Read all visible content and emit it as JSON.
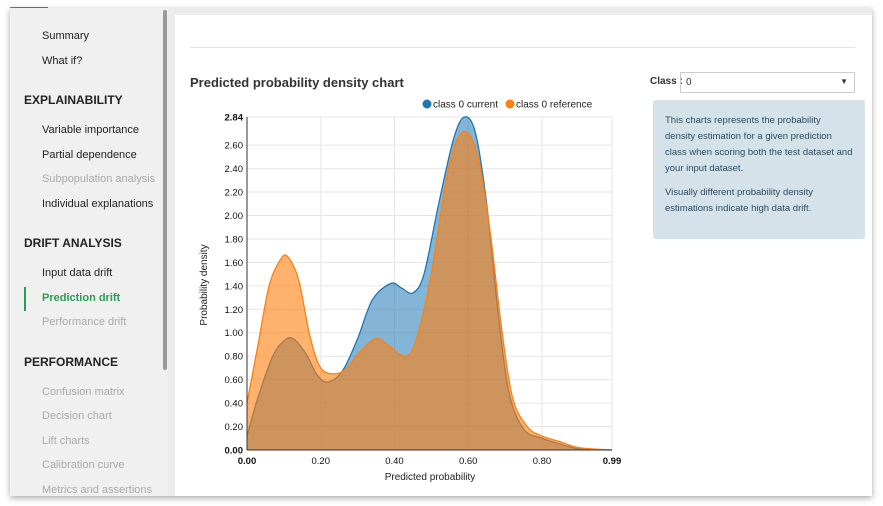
{
  "sidebar": {
    "items_top": [
      "Summary",
      "What if?"
    ],
    "sections": [
      {
        "heading": "EXPLAINABILITY",
        "items": [
          {
            "label": "Variable importance",
            "state": "enabled"
          },
          {
            "label": "Partial dependence",
            "state": "enabled"
          },
          {
            "label": "Subpopulation analysis",
            "state": "disabled"
          },
          {
            "label": "Individual explanations",
            "state": "enabled"
          }
        ]
      },
      {
        "heading": "DRIFT ANALYSIS",
        "items": [
          {
            "label": "Input data drift",
            "state": "enabled"
          },
          {
            "label": "Prediction drift",
            "state": "active"
          },
          {
            "label": "Performance drift",
            "state": "disabled"
          }
        ]
      },
      {
        "heading": "PERFORMANCE",
        "items": [
          {
            "label": "Confusion matrix",
            "state": "disabled"
          },
          {
            "label": "Decision chart",
            "state": "disabled"
          },
          {
            "label": "Lift charts",
            "state": "disabled"
          },
          {
            "label": "Calibration curve",
            "state": "disabled"
          },
          {
            "label": "Metrics and assertions",
            "state": "disabled"
          }
        ]
      }
    ]
  },
  "main": {
    "title": "Predicted probability density chart",
    "class_label": "Class :",
    "class_value": "0",
    "info": [
      "This charts represents the probability density estimation for a given prediction class when scoring both the test dataset and your input dataset.",
      "Visually different probability density estimations indicate high data drift."
    ]
  },
  "colors": {
    "accent": "#2a9d55",
    "current": "#1f77b4",
    "reference": "#ff7f0e"
  },
  "chart_data": {
    "type": "area",
    "xlabel": "Predicted probability",
    "ylabel": "Probability density",
    "xlim": [
      0,
      0.99
    ],
    "ylim": [
      0,
      2.84
    ],
    "x_ticks": [
      "0.00",
      "0.20",
      "0.40",
      "0.60",
      "0.80",
      "0.99"
    ],
    "y_ticks": [
      "0.00",
      "0.20",
      "0.40",
      "0.60",
      "0.80",
      "1.00",
      "1.20",
      "1.40",
      "1.60",
      "1.80",
      "2.00",
      "2.20",
      "2.40",
      "2.60",
      "2.84"
    ],
    "grid": true,
    "legend": "top-right",
    "series": [
      {
        "name": "class 0 current",
        "points": [
          [
            0,
            0.12
          ],
          [
            0.03,
            0.45
          ],
          [
            0.07,
            0.8
          ],
          [
            0.1,
            0.93
          ],
          [
            0.125,
            0.95
          ],
          [
            0.16,
            0.82
          ],
          [
            0.19,
            0.64
          ],
          [
            0.22,
            0.58
          ],
          [
            0.26,
            0.68
          ],
          [
            0.3,
            0.95
          ],
          [
            0.34,
            1.28
          ],
          [
            0.39,
            1.42
          ],
          [
            0.42,
            1.38
          ],
          [
            0.45,
            1.34
          ],
          [
            0.48,
            1.5
          ],
          [
            0.52,
            2.1
          ],
          [
            0.56,
            2.65
          ],
          [
            0.59,
            2.84
          ],
          [
            0.62,
            2.7
          ],
          [
            0.65,
            2.1
          ],
          [
            0.68,
            1.2
          ],
          [
            0.71,
            0.5
          ],
          [
            0.75,
            0.18
          ],
          [
            0.8,
            0.1
          ],
          [
            0.85,
            0.05
          ],
          [
            0.9,
            0.01
          ],
          [
            0.99,
            0
          ]
        ]
      },
      {
        "name": "class 0 reference",
        "points": [
          [
            0,
            0.4
          ],
          [
            0.03,
            0.9
          ],
          [
            0.06,
            1.4
          ],
          [
            0.09,
            1.62
          ],
          [
            0.11,
            1.65
          ],
          [
            0.14,
            1.45
          ],
          [
            0.17,
            0.98
          ],
          [
            0.2,
            0.7
          ],
          [
            0.24,
            0.65
          ],
          [
            0.27,
            0.7
          ],
          [
            0.31,
            0.85
          ],
          [
            0.35,
            0.95
          ],
          [
            0.38,
            0.9
          ],
          [
            0.43,
            0.8
          ],
          [
            0.46,
            0.95
          ],
          [
            0.5,
            1.5
          ],
          [
            0.54,
            2.3
          ],
          [
            0.57,
            2.65
          ],
          [
            0.6,
            2.7
          ],
          [
            0.63,
            2.45
          ],
          [
            0.66,
            1.85
          ],
          [
            0.69,
            1.05
          ],
          [
            0.72,
            0.45
          ],
          [
            0.76,
            0.2
          ],
          [
            0.8,
            0.12
          ],
          [
            0.85,
            0.07
          ],
          [
            0.9,
            0.02
          ],
          [
            0.99,
            0
          ]
        ]
      }
    ]
  }
}
